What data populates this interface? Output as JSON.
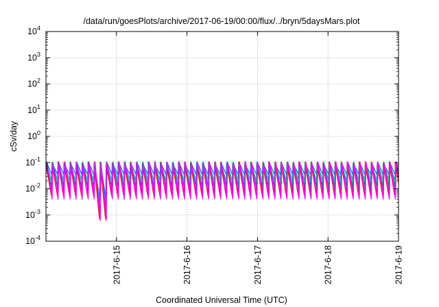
{
  "chart_data": {
    "type": "line",
    "title": "/data/run/goesPlots/archive/2017-06-19/00:00/flux/../bryn/5daysMars.plot",
    "xlabel": "Coordinated Universal Time (UTC)",
    "ylabel": "cSv/day",
    "x_start": "2017-06-14",
    "x_end": "2017-06-19",
    "xlim_days": [
      0,
      5
    ],
    "x_ticks": [
      {
        "label": "2017-6-15",
        "day": 1
      },
      {
        "label": "2017-6-16",
        "day": 2
      },
      {
        "label": "2017-6-17",
        "day": 3
      },
      {
        "label": "2017-6-18",
        "day": 4
      },
      {
        "label": "2017-6-19",
        "day": 5
      }
    ],
    "y_scale": "log",
    "ylim": [
      0.0001,
      10000
    ],
    "y_ticks": [
      {
        "base": "10",
        "exp": "-4",
        "value": 0.0001
      },
      {
        "base": "10",
        "exp": "-3",
        "value": 0.001
      },
      {
        "base": "10",
        "exp": "-2",
        "value": 0.01
      },
      {
        "base": "10",
        "exp": "-1",
        "value": 0.1
      },
      {
        "base": "10",
        "exp": "0",
        "value": 1
      },
      {
        "base": "10",
        "exp": "1",
        "value": 10
      },
      {
        "base": "10",
        "exp": "2",
        "value": 100
      },
      {
        "base": "10",
        "exp": "3",
        "value": 1000
      },
      {
        "base": "10",
        "exp": "4",
        "value": 10000
      }
    ],
    "grid": true,
    "legend": "none",
    "pattern": {
      "period_hours": 2.05,
      "peak_value": 0.1,
      "note_low_interval_days": [
        0.68,
        0.83
      ]
    },
    "series": [
      {
        "color": "#ff0000",
        "min_value": 0.006,
        "deep_min": 0.00075
      },
      {
        "color": "#cc2200",
        "min_value": 0.0055,
        "deep_min": 0.0007
      },
      {
        "color": "#00aa00",
        "min_value": 0.012,
        "deep_min": 0.0015
      },
      {
        "color": "#3355ff",
        "min_value": 0.035,
        "deep_min": 0.004
      },
      {
        "color": "#00bbbb",
        "min_value": 0.018,
        "deep_min": 0.002
      },
      {
        "color": "#8833cc",
        "min_value": 0.009,
        "deep_min": 0.001
      },
      {
        "color": "#ff00ff",
        "min_value": 0.004,
        "deep_min": 0.0006
      }
    ]
  }
}
